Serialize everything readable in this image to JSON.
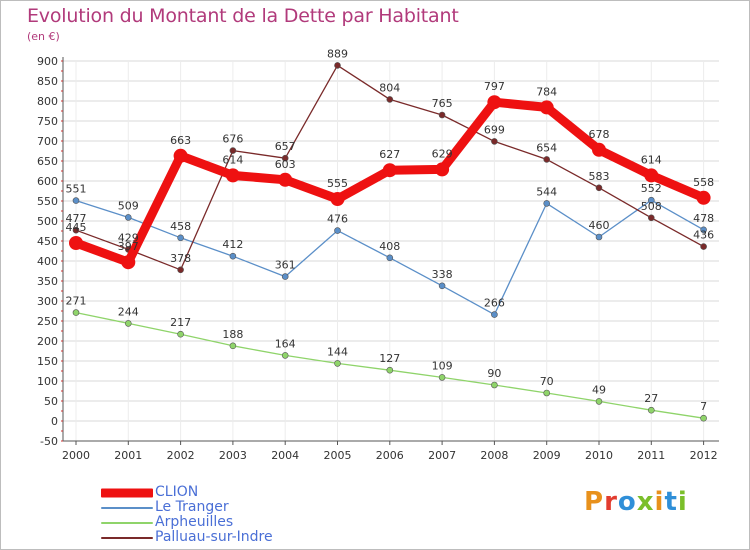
{
  "header": {
    "title": "Evolution du Montant de la Dette par Habitant",
    "subtitle": "(en €)"
  },
  "logo": {
    "text": "Proxiti",
    "colors": [
      "#e8911c",
      "#e23c2f",
      "#2f8fd8",
      "#7bbf2a",
      "#e8911c",
      "#2f8fd8",
      "#7bbf2a"
    ]
  },
  "colors": {
    "title": "#b13a7b",
    "grid": "#d8d8d8",
    "axis": "#555555",
    "legend_text": "#4a6fd6"
  },
  "chart_data": {
    "type": "line",
    "title": "Evolution du Montant de la Dette par Habitant",
    "subtitle": "(en €)",
    "xlabel": "",
    "ylabel": "",
    "ylim": [
      -50,
      900
    ],
    "y_ticks": [
      -50,
      0,
      50,
      100,
      150,
      200,
      250,
      300,
      350,
      400,
      450,
      500,
      550,
      600,
      650,
      700,
      750,
      800,
      850,
      900
    ],
    "grid": true,
    "legend_position": "bottom-left",
    "x": [
      "2000",
      "2001",
      "2002",
      "2003",
      "2004",
      "2005",
      "2006",
      "2007",
      "2008",
      "2009",
      "2010",
      "2011",
      "2012"
    ],
    "series": [
      {
        "name": "CLION",
        "color": "#ee1111",
        "values": [
          445,
          397,
          663,
          614,
          603,
          555,
          627,
          629,
          797,
          784,
          678,
          614,
          558
        ]
      },
      {
        "name": "Le Tranger",
        "color": "#5b8fc8",
        "values": [
          551,
          509,
          458,
          412,
          361,
          476,
          408,
          338,
          266,
          544,
          460,
          552,
          478
        ]
      },
      {
        "name": "Arpheuilles",
        "color": "#8fd46a",
        "values": [
          271,
          244,
          217,
          188,
          164,
          144,
          127,
          109,
          90,
          70,
          49,
          27,
          7
        ]
      },
      {
        "name": "Palluau-sur-Indre",
        "color": "#7a2a2a",
        "values": [
          477,
          429,
          378,
          676,
          657,
          889,
          804,
          765,
          699,
          654,
          583,
          508,
          436
        ]
      }
    ],
    "data_labels": [
      [
        "445",
        "397",
        "663",
        "614",
        "603",
        "555",
        "627",
        "629",
        "797",
        "784",
        "678",
        "614",
        "558"
      ],
      [
        "551",
        "509",
        "458",
        "412",
        "361",
        "476",
        "408",
        "338",
        "266",
        "544",
        "460",
        "552",
        "478"
      ],
      [
        "271",
        "244",
        "217",
        "188",
        "164",
        "144",
        "127",
        "109",
        "90",
        "70",
        "49",
        "27",
        "7"
      ],
      [
        "477",
        "429",
        "378",
        "676",
        "657",
        "889",
        "804",
        "765",
        "699",
        "654",
        "583",
        "508",
        "436"
      ]
    ]
  }
}
